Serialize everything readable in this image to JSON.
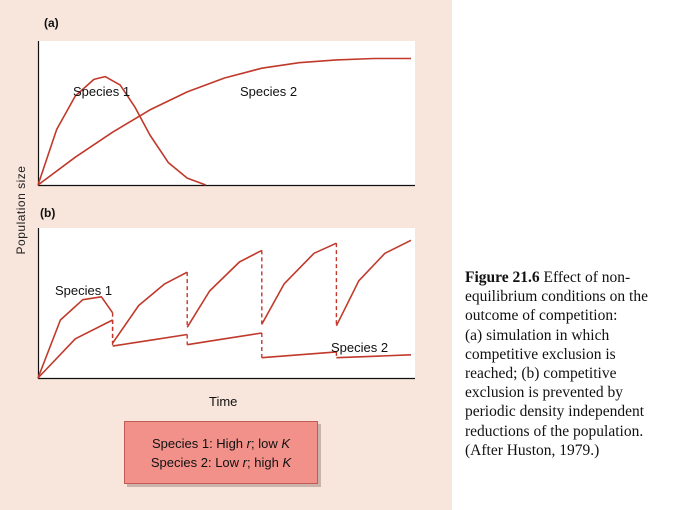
{
  "caption": {
    "figure_number": "Figure 21.6",
    "lines": [
      "Effect of non-",
      "equilibrium conditions on the",
      "outcome of competition:",
      "(a) simulation in which",
      "competitive exclusion is",
      "reached; (b) competitive",
      "exclusion is prevented by",
      "periodic density independent",
      "reductions of the population.",
      "(After Huston, 1979.)"
    ]
  },
  "legend": {
    "line1": {
      "prefix": "Species 1: High ",
      "r": "r",
      "mid": "; low ",
      "k": "K"
    },
    "line2": {
      "prefix": "Species 2: Low ",
      "r": "r",
      "mid": "; high ",
      "k": "K"
    }
  },
  "chart_data": [
    {
      "type": "line",
      "panel_label": "(a)",
      "ylabel": "Population size",
      "xlabel": "",
      "xlim": [
        0,
        100
      ],
      "ylim": [
        0,
        100
      ],
      "grid": false,
      "color": "#c0392b",
      "series": [
        {
          "name": "Species 1",
          "x": [
            0,
            5,
            10,
            15,
            18,
            22,
            26,
            30,
            35,
            40,
            45
          ],
          "y": [
            0,
            40,
            64,
            76,
            78,
            72,
            56,
            36,
            16,
            5,
            0
          ]
        },
        {
          "name": "Species 2",
          "x": [
            0,
            10,
            20,
            30,
            40,
            50,
            60,
            70,
            80,
            90,
            100
          ],
          "y": [
            0,
            20,
            38,
            54,
            67,
            77,
            84,
            88,
            90,
            91,
            91
          ]
        }
      ],
      "annotations": [
        {
          "series": "Species 1"
        },
        {
          "series": "Species 2"
        }
      ]
    },
    {
      "type": "line",
      "panel_label": "(b)",
      "ylabel": "Population size",
      "xlabel": "Time",
      "xlim": [
        0,
        100
      ],
      "ylim": [
        0,
        100
      ],
      "grid": false,
      "color": "#c0392b",
      "series": [
        {
          "name": "Species 1",
          "x": [
            0,
            6,
            12,
            17,
            20,
            20,
            27,
            34,
            40,
            40,
            46,
            54,
            60,
            60,
            66,
            74,
            80,
            80,
            86,
            93,
            100
          ],
          "y": [
            0,
            40,
            54,
            56,
            45,
            24,
            50,
            65,
            73,
            35,
            60,
            80,
            88,
            37,
            65,
            86,
            93,
            36,
            67,
            86,
            95
          ]
        },
        {
          "name": "Species 2",
          "x": [
            0,
            10,
            20,
            20,
            30,
            40,
            40,
            50,
            60,
            60,
            70,
            80,
            80,
            90,
            100
          ],
          "y": [
            0,
            27,
            40,
            22,
            26,
            30,
            23,
            27,
            31,
            14,
            16,
            18,
            14,
            15,
            16
          ]
        }
      ],
      "annotations": [
        {
          "series": "Species 1"
        },
        {
          "series": "Species 2"
        }
      ]
    }
  ]
}
